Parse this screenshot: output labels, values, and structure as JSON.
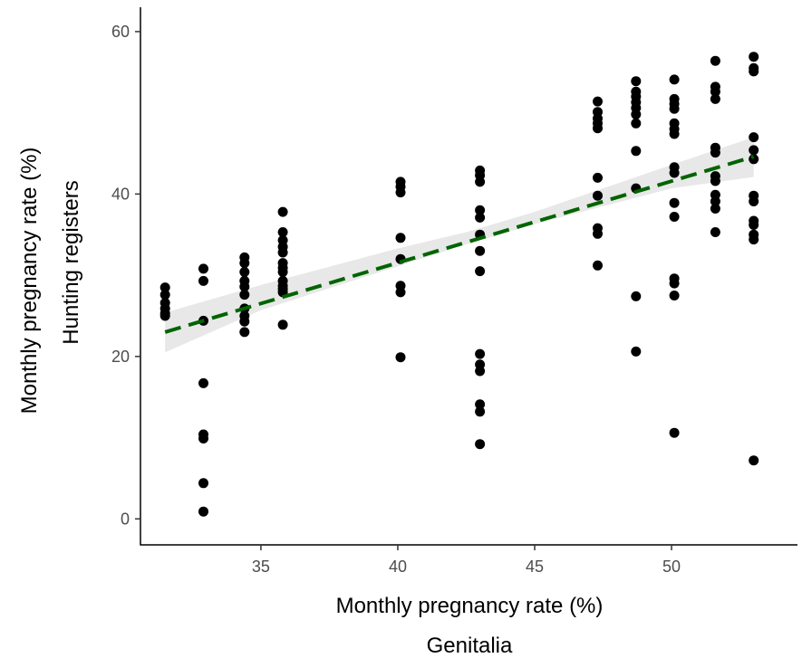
{
  "chart_data": {
    "type": "scatter",
    "xlabel": [
      "Monthly pregnancy rate (%)",
      "Genitalia"
    ],
    "ylabel": [
      "Monthly pregnancy rate (%)",
      "Hunting registers"
    ],
    "xlim": [
      30.6,
      54.6
    ],
    "ylim": [
      -3.2,
      63
    ],
    "x_ticks": [
      35,
      40,
      45,
      50
    ],
    "y_ticks": [
      0,
      20,
      40,
      60
    ],
    "grid": false,
    "points": [
      {
        "x": 31.5,
        "y": 28.5
      },
      {
        "x": 31.5,
        "y": 27.6
      },
      {
        "x": 31.5,
        "y": 26.6
      },
      {
        "x": 31.5,
        "y": 25.9
      },
      {
        "x": 31.5,
        "y": 25.3
      },
      {
        "x": 31.5,
        "y": 25.0
      },
      {
        "x": 32.9,
        "y": 30.8
      },
      {
        "x": 32.9,
        "y": 29.3
      },
      {
        "x": 32.9,
        "y": 24.4
      },
      {
        "x": 32.9,
        "y": 16.7
      },
      {
        "x": 32.9,
        "y": 10.4
      },
      {
        "x": 32.9,
        "y": 9.9
      },
      {
        "x": 32.9,
        "y": 4.4
      },
      {
        "x": 32.9,
        "y": 0.9
      },
      {
        "x": 34.4,
        "y": 32.2
      },
      {
        "x": 34.4,
        "y": 31.5
      },
      {
        "x": 34.4,
        "y": 30.4
      },
      {
        "x": 34.4,
        "y": 29.3
      },
      {
        "x": 34.4,
        "y": 28.6
      },
      {
        "x": 34.4,
        "y": 27.6
      },
      {
        "x": 34.4,
        "y": 25.9
      },
      {
        "x": 34.4,
        "y": 25.0
      },
      {
        "x": 34.4,
        "y": 24.3
      },
      {
        "x": 34.4,
        "y": 23.0
      },
      {
        "x": 35.8,
        "y": 37.8
      },
      {
        "x": 35.8,
        "y": 35.3
      },
      {
        "x": 35.8,
        "y": 34.3
      },
      {
        "x": 35.8,
        "y": 33.5
      },
      {
        "x": 35.8,
        "y": 32.8
      },
      {
        "x": 35.8,
        "y": 31.5
      },
      {
        "x": 35.8,
        "y": 30.9
      },
      {
        "x": 35.8,
        "y": 30.4
      },
      {
        "x": 35.8,
        "y": 29.3
      },
      {
        "x": 35.8,
        "y": 28.7
      },
      {
        "x": 35.8,
        "y": 28.3
      },
      {
        "x": 35.8,
        "y": 27.9
      },
      {
        "x": 35.8,
        "y": 23.9
      },
      {
        "x": 40.1,
        "y": 41.5
      },
      {
        "x": 40.1,
        "y": 40.9
      },
      {
        "x": 40.1,
        "y": 40.2
      },
      {
        "x": 40.1,
        "y": 34.6
      },
      {
        "x": 40.1,
        "y": 32.0
      },
      {
        "x": 40.1,
        "y": 28.7
      },
      {
        "x": 40.1,
        "y": 27.9
      },
      {
        "x": 40.1,
        "y": 19.9
      },
      {
        "x": 43.0,
        "y": 42.9
      },
      {
        "x": 43.0,
        "y": 42.3
      },
      {
        "x": 43.0,
        "y": 41.5
      },
      {
        "x": 43.0,
        "y": 38.0
      },
      {
        "x": 43.0,
        "y": 37.1
      },
      {
        "x": 43.0,
        "y": 35.0
      },
      {
        "x": 43.0,
        "y": 33.0
      },
      {
        "x": 43.0,
        "y": 30.5
      },
      {
        "x": 43.0,
        "y": 20.3
      },
      {
        "x": 43.0,
        "y": 19.0
      },
      {
        "x": 43.0,
        "y": 18.2
      },
      {
        "x": 43.0,
        "y": 14.1
      },
      {
        "x": 43.0,
        "y": 13.2
      },
      {
        "x": 43.0,
        "y": 9.2
      },
      {
        "x": 47.3,
        "y": 51.4
      },
      {
        "x": 47.3,
        "y": 50.1
      },
      {
        "x": 47.3,
        "y": 49.3
      },
      {
        "x": 47.3,
        "y": 48.7
      },
      {
        "x": 47.3,
        "y": 48.1
      },
      {
        "x": 47.3,
        "y": 42.0
      },
      {
        "x": 47.3,
        "y": 39.8
      },
      {
        "x": 47.3,
        "y": 35.8
      },
      {
        "x": 47.3,
        "y": 35.1
      },
      {
        "x": 47.3,
        "y": 31.2
      },
      {
        "x": 48.7,
        "y": 53.9
      },
      {
        "x": 48.7,
        "y": 52.6
      },
      {
        "x": 48.7,
        "y": 52.0
      },
      {
        "x": 48.7,
        "y": 51.3
      },
      {
        "x": 48.7,
        "y": 50.6
      },
      {
        "x": 48.7,
        "y": 49.8
      },
      {
        "x": 48.7,
        "y": 48.7
      },
      {
        "x": 48.7,
        "y": 45.3
      },
      {
        "x": 48.7,
        "y": 40.7
      },
      {
        "x": 48.7,
        "y": 27.4
      },
      {
        "x": 48.7,
        "y": 20.6
      },
      {
        "x": 50.1,
        "y": 54.1
      },
      {
        "x": 50.1,
        "y": 51.7
      },
      {
        "x": 50.1,
        "y": 51.1
      },
      {
        "x": 50.1,
        "y": 50.5
      },
      {
        "x": 50.1,
        "y": 48.7
      },
      {
        "x": 50.1,
        "y": 48.0
      },
      {
        "x": 50.1,
        "y": 47.4
      },
      {
        "x": 50.1,
        "y": 43.3
      },
      {
        "x": 50.1,
        "y": 42.6
      },
      {
        "x": 50.1,
        "y": 38.9
      },
      {
        "x": 50.1,
        "y": 37.2
      },
      {
        "x": 50.1,
        "y": 29.6
      },
      {
        "x": 50.1,
        "y": 29.0
      },
      {
        "x": 50.1,
        "y": 27.5
      },
      {
        "x": 50.1,
        "y": 10.6
      },
      {
        "x": 51.6,
        "y": 56.4
      },
      {
        "x": 51.6,
        "y": 53.2
      },
      {
        "x": 51.6,
        "y": 52.6
      },
      {
        "x": 51.6,
        "y": 51.7
      },
      {
        "x": 51.6,
        "y": 45.7
      },
      {
        "x": 51.6,
        "y": 45.1
      },
      {
        "x": 51.6,
        "y": 42.2
      },
      {
        "x": 51.6,
        "y": 41.6
      },
      {
        "x": 51.6,
        "y": 39.9
      },
      {
        "x": 51.6,
        "y": 39.1
      },
      {
        "x": 51.6,
        "y": 38.2
      },
      {
        "x": 51.6,
        "y": 35.3
      },
      {
        "x": 53.0,
        "y": 56.9
      },
      {
        "x": 53.0,
        "y": 55.5
      },
      {
        "x": 53.0,
        "y": 55.1
      },
      {
        "x": 53.0,
        "y": 47.0
      },
      {
        "x": 53.0,
        "y": 45.4
      },
      {
        "x": 53.0,
        "y": 44.3
      },
      {
        "x": 53.0,
        "y": 39.8
      },
      {
        "x": 53.0,
        "y": 39.1
      },
      {
        "x": 53.0,
        "y": 36.7
      },
      {
        "x": 53.0,
        "y": 36.2
      },
      {
        "x": 53.0,
        "y": 35.0
      },
      {
        "x": 53.0,
        "y": 34.4
      },
      {
        "x": 53.0,
        "y": 7.2
      }
    ],
    "fit_line": {
      "x": [
        31.5,
        53.0
      ],
      "y": [
        23.0,
        44.6
      ],
      "style": "dashed",
      "color": "#006400"
    },
    "confidence_band": {
      "x": [
        31.5,
        35,
        40,
        42.5,
        45,
        50,
        53.0
      ],
      "lower": [
        20.5,
        25.7,
        31.1,
        33.8,
        36.3,
        40.7,
        42.1
      ],
      "upper": [
        25.4,
        28.8,
        33.3,
        35.3,
        37.8,
        43.6,
        47.0
      ],
      "color": "#e6e6e6"
    },
    "point_color": "#000000"
  }
}
